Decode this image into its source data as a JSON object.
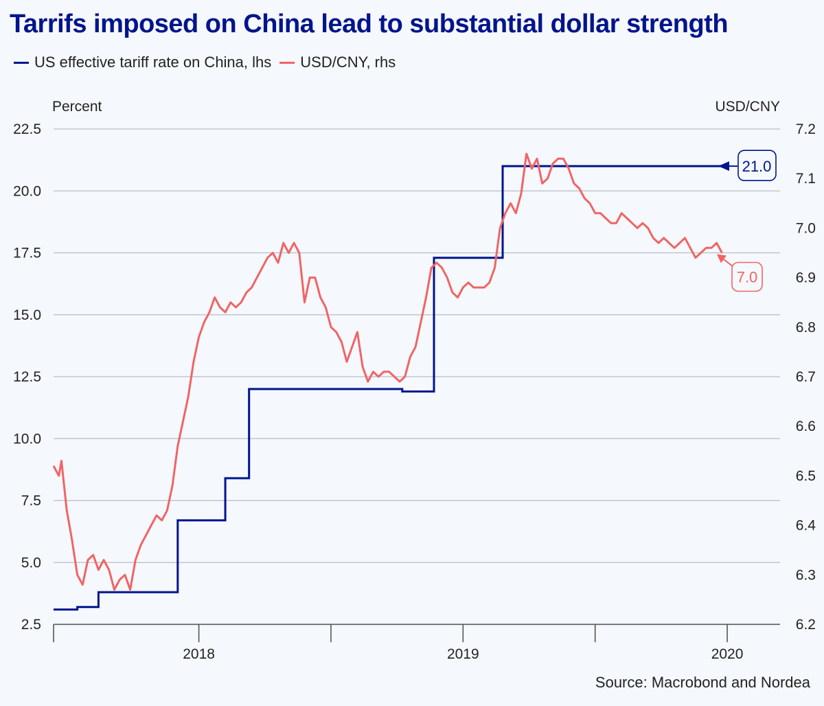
{
  "title": "Tarrifs imposed on China lead to substantial dollar strength",
  "source": "Source: Macrobond and Nordea",
  "colors": {
    "title": "#00148c",
    "tariff": "#00148c",
    "usdcny": "#f06464",
    "grid": "#b9bdc6",
    "background": "#f5f8fc"
  },
  "chart_data": {
    "type": "line",
    "title": "Tarrifs imposed on China lead to substantial dollar strength",
    "ylabel_left": "Percent",
    "ylabel_right": "USD/CNY",
    "ylim_left": [
      2.5,
      22.5
    ],
    "ylim_right": [
      6.2,
      7.2
    ],
    "xlim": [
      2017.45,
      2020.2
    ],
    "left_ticks": [
      "2.5",
      "5.0",
      "7.5",
      "10.0",
      "12.5",
      "15.0",
      "17.5",
      "20.0",
      "22.5"
    ],
    "right_ticks": [
      "6.2",
      "6.3",
      "6.4",
      "6.5",
      "6.6",
      "6.7",
      "6.8",
      "6.9",
      "7.0",
      "7.1",
      "7.2"
    ],
    "x_labels": [
      {
        "label": "2018",
        "x": 2018.0
      },
      {
        "label": "2019",
        "x": 2019.0
      },
      {
        "label": "2020",
        "x": 2020.0
      }
    ],
    "x_ticks": [
      2017.45,
      2018.5,
      2019.5
    ],
    "series": [
      {
        "name": "US effective tariff rate on China, lhs",
        "axis": "left",
        "step": true,
        "x": [
          2017.45,
          2017.54,
          2017.62,
          2017.92,
          2018.1,
          2018.19,
          2018.27,
          2018.77,
          2018.89,
          2019.15,
          2019.24,
          2019.45,
          2019.68,
          2019.83,
          2019.99
        ],
        "y": [
          3.1,
          3.2,
          3.8,
          6.7,
          8.4,
          12.0,
          12.0,
          11.9,
          17.3,
          21.0,
          21.0,
          21.0,
          21.0,
          21.0,
          21.0
        ]
      },
      {
        "name": "USD/CNY, rhs",
        "axis": "right",
        "x": [
          2017.45,
          2017.47,
          2017.48,
          2017.5,
          2017.52,
          2017.54,
          2017.56,
          2017.58,
          2017.6,
          2017.62,
          2017.64,
          2017.66,
          2017.68,
          2017.7,
          2017.72,
          2017.74,
          2017.76,
          2017.78,
          2017.8,
          2017.82,
          2017.84,
          2017.86,
          2017.88,
          2017.9,
          2017.92,
          2017.94,
          2017.96,
          2017.98,
          2018.0,
          2018.02,
          2018.04,
          2018.06,
          2018.08,
          2018.1,
          2018.12,
          2018.14,
          2018.16,
          2018.18,
          2018.2,
          2018.22,
          2018.24,
          2018.26,
          2018.28,
          2018.3,
          2018.32,
          2018.34,
          2018.36,
          2018.38,
          2018.4,
          2018.42,
          2018.44,
          2018.46,
          2018.48,
          2018.5,
          2018.52,
          2018.54,
          2018.56,
          2018.58,
          2018.6,
          2018.62,
          2018.64,
          2018.66,
          2018.68,
          2018.7,
          2018.72,
          2018.74,
          2018.76,
          2018.78,
          2018.8,
          2018.82,
          2018.84,
          2018.86,
          2018.88,
          2018.9,
          2018.92,
          2018.94,
          2018.96,
          2018.98,
          2019.0,
          2019.02,
          2019.04,
          2019.06,
          2019.08,
          2019.1,
          2019.12,
          2019.14,
          2019.16,
          2019.18,
          2019.2,
          2019.22,
          2019.24,
          2019.26,
          2019.28,
          2019.3,
          2019.32,
          2019.34,
          2019.36,
          2019.38,
          2019.4,
          2019.42,
          2019.44,
          2019.46,
          2019.48,
          2019.5,
          2019.52,
          2019.54,
          2019.56,
          2019.58,
          2019.6,
          2019.62,
          2019.64,
          2019.66,
          2019.68,
          2019.7,
          2019.72,
          2019.74,
          2019.76,
          2019.78,
          2019.8,
          2019.82,
          2019.84,
          2019.86,
          2019.88,
          2019.9,
          2019.92,
          2019.94,
          2019.96,
          2019.98
        ],
        "y": [
          6.52,
          6.5,
          6.53,
          6.43,
          6.37,
          6.3,
          6.28,
          6.33,
          6.34,
          6.31,
          6.33,
          6.31,
          6.27,
          6.29,
          6.3,
          6.27,
          6.33,
          6.36,
          6.38,
          6.4,
          6.42,
          6.41,
          6.43,
          6.48,
          6.56,
          6.61,
          6.66,
          6.73,
          6.78,
          6.81,
          6.83,
          6.86,
          6.84,
          6.83,
          6.85,
          6.84,
          6.85,
          6.87,
          6.88,
          6.9,
          6.92,
          6.94,
          6.95,
          6.93,
          6.97,
          6.95,
          6.97,
          6.95,
          6.85,
          6.9,
          6.9,
          6.86,
          6.84,
          6.8,
          6.79,
          6.77,
          6.73,
          6.76,
          6.79,
          6.72,
          6.69,
          6.71,
          6.7,
          6.71,
          6.71,
          6.7,
          6.69,
          6.7,
          6.74,
          6.76,
          6.81,
          6.86,
          6.92,
          6.93,
          6.92,
          6.9,
          6.87,
          6.86,
          6.88,
          6.89,
          6.88,
          6.88,
          6.88,
          6.89,
          6.92,
          7.0,
          7.03,
          7.05,
          7.03,
          7.07,
          7.15,
          7.12,
          7.14,
          7.09,
          7.1,
          7.13,
          7.14,
          7.14,
          7.12,
          7.09,
          7.08,
          7.06,
          7.05,
          7.03,
          7.03,
          7.02,
          7.01,
          7.01,
          7.03,
          7.02,
          7.01,
          7.0,
          7.01,
          7.0,
          6.98,
          6.97,
          6.98,
          6.97,
          6.96,
          6.97,
          6.98,
          6.96,
          6.94,
          6.95,
          6.96,
          6.96,
          6.97,
          6.95
        ]
      }
    ],
    "annotations": [
      {
        "series": "US effective tariff rate on China, lhs",
        "text": "21.0",
        "value": 21.0
      },
      {
        "series": "USD/CNY, rhs",
        "text": "7.0",
        "value": 6.95
      }
    ]
  }
}
